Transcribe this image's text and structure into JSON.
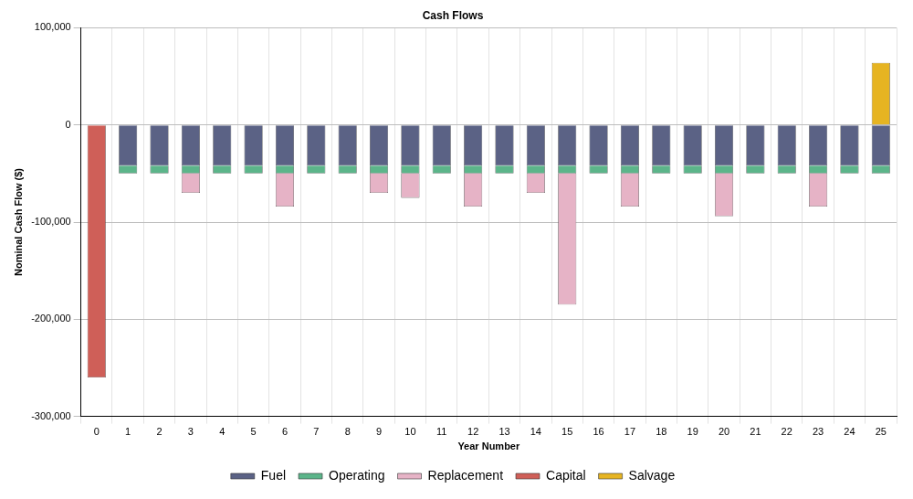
{
  "chart_data": {
    "type": "bar",
    "title": "Cash Flows",
    "x_label": "Year Number",
    "y_label": "Nominal Cash Flow ($)",
    "categories": [
      "0",
      "1",
      "2",
      "3",
      "4",
      "5",
      "6",
      "7",
      "8",
      "9",
      "10",
      "11",
      "12",
      "13",
      "14",
      "15",
      "16",
      "17",
      "18",
      "19",
      "20",
      "21",
      "22",
      "23",
      "24",
      "25"
    ],
    "stacked": true,
    "grid": true,
    "legend": "bottom",
    "ylim": [
      -300000,
      100000
    ],
    "yticks": [
      {
        "value": -300000,
        "label": "-300,000"
      },
      {
        "value": -200000,
        "label": "-200,000"
      },
      {
        "value": -100000,
        "label": "-100,000"
      },
      0,
      {
        "value": 100000,
        "label": "100,000"
      }
    ],
    "series": [
      {
        "name": "Fuel",
        "color": "#5b6285",
        "values": [
          0,
          -42000,
          -42000,
          -42000,
          -42000,
          -42000,
          -42000,
          -42000,
          -42000,
          -42000,
          -42000,
          -42000,
          -42000,
          -42000,
          -42000,
          -42000,
          -42000,
          -42000,
          -42000,
          -42000,
          -42000,
          -42000,
          -42000,
          -42000,
          -42000,
          -42000
        ]
      },
      {
        "name": "Operating",
        "color": "#5cb58a",
        "values": [
          0,
          -8000,
          -8000,
          -8000,
          -8000,
          -8000,
          -8000,
          -8000,
          -8000,
          -8000,
          -8000,
          -8000,
          -8000,
          -8000,
          -8000,
          -8000,
          -8000,
          -8000,
          -8000,
          -8000,
          -8000,
          -8000,
          -8000,
          -8000,
          -8000,
          -8000
        ]
      },
      {
        "name": "Replacement",
        "color": "#e6b3c6",
        "values": [
          0,
          0,
          0,
          -20000,
          0,
          0,
          -34000,
          0,
          0,
          -20000,
          -25000,
          0,
          -34000,
          0,
          -20000,
          -135000,
          0,
          -34000,
          0,
          0,
          -44000,
          0,
          0,
          -34000,
          0,
          0
        ]
      },
      {
        "name": "Capital",
        "color": "#cf5f58",
        "values": [
          -260000,
          0,
          0,
          0,
          0,
          0,
          0,
          0,
          0,
          0,
          0,
          0,
          0,
          0,
          0,
          0,
          0,
          0,
          0,
          0,
          0,
          0,
          0,
          0,
          0,
          0
        ]
      },
      {
        "name": "Salvage",
        "color": "#e6b422",
        "values": [
          0,
          0,
          0,
          0,
          0,
          0,
          0,
          0,
          0,
          0,
          0,
          0,
          0,
          0,
          0,
          0,
          0,
          0,
          0,
          0,
          0,
          0,
          0,
          0,
          0,
          64000
        ]
      }
    ]
  }
}
